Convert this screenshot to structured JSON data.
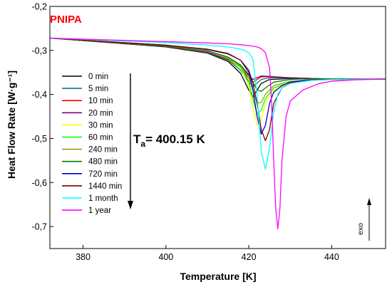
{
  "chart_data": {
    "type": "line",
    "title": "PNIPA",
    "xlabel": "Temperature [K]",
    "ylabel": "Heat Flow Rate [W·g⁻¹]",
    "xlim": [
      372,
      453
    ],
    "ylim": [
      -0.75,
      -0.2
    ],
    "xticks": [
      380,
      400,
      420,
      440
    ],
    "yticks": [
      -0.7,
      -0.6,
      -0.5,
      -0.4,
      -0.3,
      -0.2
    ],
    "ytick_labels": [
      "-0,7",
      "-0,6",
      "-0,5",
      "-0,4",
      "-0,3",
      "-0,2"
    ],
    "grid": false,
    "legend_position": "left-center",
    "annotation_ta": {
      "main": "T",
      "sub": "a",
      "rest": "= 400.15 K"
    },
    "annotation_exo": "exo",
    "series": [
      {
        "name": "0 min",
        "color": "#000000",
        "x": [
          372,
          400,
          410,
          415,
          418,
          420,
          421,
          422,
          423,
          425,
          430,
          440,
          453
        ],
        "y": [
          -0.272,
          -0.292,
          -0.306,
          -0.325,
          -0.352,
          -0.39,
          -0.405,
          -0.39,
          -0.375,
          -0.366,
          -0.364,
          -0.365,
          -0.365
        ]
      },
      {
        "name": "5 min",
        "color": "#008080",
        "x": [
          372,
          400,
          410,
          415,
          418,
          420,
          421,
          422,
          423,
          425,
          430,
          440,
          453
        ],
        "y": [
          -0.272,
          -0.291,
          -0.305,
          -0.322,
          -0.345,
          -0.372,
          -0.382,
          -0.374,
          -0.366,
          -0.362,
          -0.363,
          -0.365,
          -0.365
        ]
      },
      {
        "name": "10 min",
        "color": "#FF0000",
        "x": [
          372,
          400,
          410,
          415,
          418,
          420,
          421,
          422,
          423,
          425,
          430,
          440,
          453
        ],
        "y": [
          -0.272,
          -0.291,
          -0.304,
          -0.32,
          -0.34,
          -0.363,
          -0.372,
          -0.366,
          -0.36,
          -0.36,
          -0.362,
          -0.365,
          -0.365
        ]
      },
      {
        "name": "20 min",
        "color": "#800080",
        "x": [
          372,
          400,
          410,
          415,
          418,
          420,
          421,
          422,
          423,
          425,
          430,
          440,
          453
        ],
        "y": [
          -0.272,
          -0.291,
          -0.304,
          -0.319,
          -0.337,
          -0.357,
          -0.366,
          -0.362,
          -0.358,
          -0.359,
          -0.362,
          -0.365,
          -0.365
        ]
      },
      {
        "name": "30 min",
        "color": "#FFFF00",
        "x": [
          372,
          400,
          410,
          415,
          418,
          420,
          421,
          422,
          423,
          424,
          426,
          430,
          435,
          440,
          453
        ],
        "y": [
          -0.272,
          -0.29,
          -0.302,
          -0.318,
          -0.34,
          -0.38,
          -0.43,
          -0.47,
          -0.455,
          -0.42,
          -0.39,
          -0.375,
          -0.368,
          -0.366,
          -0.365
        ]
      },
      {
        "name": "60 min",
        "color": "#00FF00",
        "x": [
          372,
          400,
          410,
          415,
          418,
          420,
          421,
          422,
          423,
          424,
          426,
          430,
          435,
          440,
          453
        ],
        "y": [
          -0.272,
          -0.29,
          -0.302,
          -0.317,
          -0.338,
          -0.37,
          -0.41,
          -0.445,
          -0.435,
          -0.41,
          -0.385,
          -0.372,
          -0.367,
          -0.366,
          -0.365
        ]
      },
      {
        "name": "240 min",
        "color": "#A0A000",
        "x": [
          372,
          400,
          410,
          415,
          418,
          420,
          421,
          422,
          423,
          424,
          426,
          430,
          435,
          440,
          453
        ],
        "y": [
          -0.272,
          -0.29,
          -0.302,
          -0.316,
          -0.335,
          -0.362,
          -0.39,
          -0.42,
          -0.418,
          -0.4,
          -0.38,
          -0.37,
          -0.366,
          -0.365,
          -0.365
        ]
      },
      {
        "name": "480 min",
        "color": "#008000",
        "x": [
          372,
          400,
          410,
          415,
          418,
          420,
          421,
          422,
          423,
          424,
          426,
          430,
          435,
          440,
          453
        ],
        "y": [
          -0.272,
          -0.29,
          -0.301,
          -0.315,
          -0.333,
          -0.355,
          -0.372,
          -0.39,
          -0.393,
          -0.385,
          -0.372,
          -0.366,
          -0.364,
          -0.365,
          -0.365
        ]
      },
      {
        "name": "720 min",
        "color": "#0000CC",
        "x": [
          372,
          400,
          410,
          415,
          418,
          420,
          421,
          422,
          423,
          424,
          425,
          426,
          428,
          430,
          435,
          440,
          453
        ],
        "y": [
          -0.272,
          -0.288,
          -0.298,
          -0.308,
          -0.322,
          -0.35,
          -0.39,
          -0.45,
          -0.49,
          -0.47,
          -0.42,
          -0.395,
          -0.38,
          -0.372,
          -0.367,
          -0.366,
          -0.365
        ]
      },
      {
        "name": "1440 min",
        "color": "#800000",
        "x": [
          372,
          400,
          410,
          415,
          418,
          420,
          421,
          422,
          423,
          424,
          425,
          426,
          428,
          430,
          435,
          440,
          453
        ],
        "y": [
          -0.272,
          -0.288,
          -0.297,
          -0.307,
          -0.322,
          -0.345,
          -0.375,
          -0.42,
          -0.48,
          -0.505,
          -0.48,
          -0.42,
          -0.385,
          -0.374,
          -0.368,
          -0.366,
          -0.365
        ]
      },
      {
        "name": "1 month",
        "color": "#00FFFF",
        "x": [
          372,
          400,
          410,
          415,
          418,
          419,
          420,
          421,
          422,
          423,
          424,
          425,
          426,
          427,
          428,
          430,
          435,
          440,
          453
        ],
        "y": [
          -0.272,
          -0.282,
          -0.288,
          -0.292,
          -0.297,
          -0.3,
          -0.305,
          -0.32,
          -0.4,
          -0.53,
          -0.57,
          -0.52,
          -0.44,
          -0.4,
          -0.385,
          -0.375,
          -0.368,
          -0.366,
          -0.365
        ]
      },
      {
        "name": "1 year",
        "color": "#FF00FF",
        "x": [
          372,
          400,
          410,
          415,
          418,
          420,
          422,
          423,
          424,
          425,
          425.5,
          426,
          426.5,
          427,
          427.5,
          428,
          429,
          430,
          433,
          437,
          440,
          445,
          453
        ],
        "y": [
          -0.272,
          -0.28,
          -0.283,
          -0.285,
          -0.287,
          -0.289,
          -0.292,
          -0.296,
          -0.305,
          -0.34,
          -0.42,
          -0.55,
          -0.66,
          -0.705,
          -0.66,
          -0.55,
          -0.45,
          -0.415,
          -0.39,
          -0.375,
          -0.37,
          -0.367,
          -0.365
        ]
      }
    ]
  }
}
